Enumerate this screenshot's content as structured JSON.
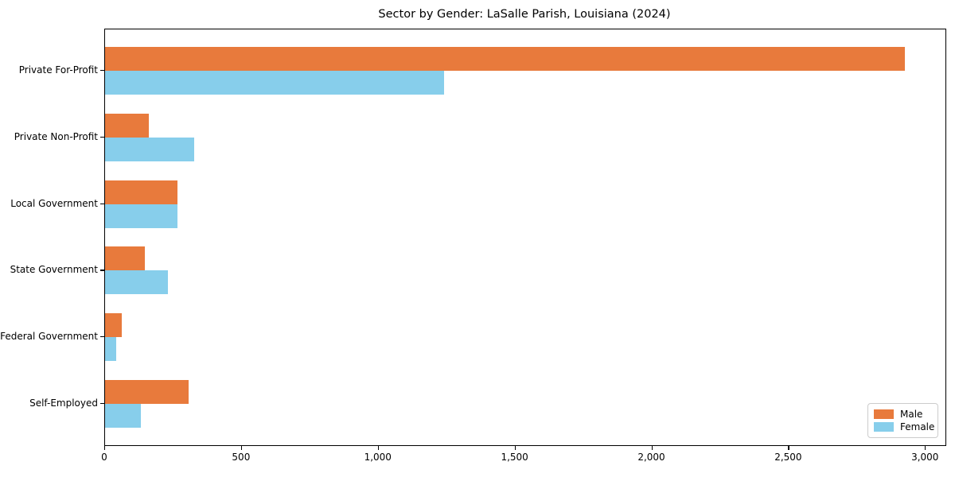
{
  "title": "Sector by Gender: LaSalle Parish, Louisiana (2024)",
  "chart_data": {
    "type": "bar",
    "orientation": "horizontal",
    "title": "Sector by Gender: LaSalle Parish, Louisiana (2024)",
    "categories": [
      "Private For-Profit",
      "Private Non-Profit",
      "Local Government",
      "State Government",
      "Federal Government",
      "Self-Employed"
    ],
    "series": [
      {
        "name": "Male",
        "color": "#e87a3c",
        "values": [
          2925,
          160,
          265,
          145,
          60,
          305
        ]
      },
      {
        "name": "Female",
        "color": "#87ceeb",
        "values": [
          1240,
          325,
          265,
          230,
          40,
          130
        ]
      }
    ],
    "xlabel": "",
    "ylabel": "",
    "xlim": [
      0,
      3072
    ],
    "xticks": [
      0,
      500,
      1000,
      1500,
      2000,
      2500,
      3000
    ],
    "xtick_labels": [
      "0",
      "500",
      "1,000",
      "1,500",
      "2,000",
      "2,500",
      "3,000"
    ],
    "grid": false,
    "legend_position": "lower right",
    "background_color": "#ffffff",
    "spine_color": "#000000"
  }
}
